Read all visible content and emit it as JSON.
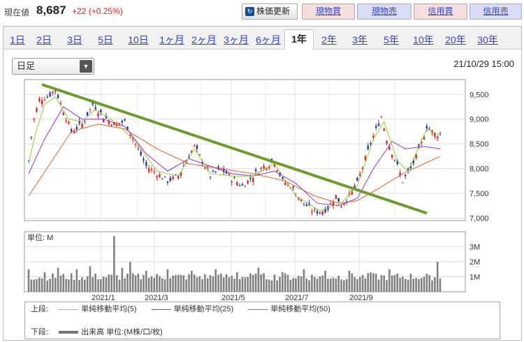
{
  "quote": {
    "label": "現在値",
    "price": "8,687",
    "change": "+22 (+0.25%)"
  },
  "buttons": {
    "update": "株価更新",
    "cash_buy": "現物買",
    "cash_sell": "現物売",
    "margin_buy": "信用買",
    "margin_sell": "信用売"
  },
  "tabs": [
    "1日",
    "2日",
    "3日",
    "5日",
    "10日",
    "1ヶ月",
    "2ヶ月",
    "3ヶ月",
    "6ヶ月",
    "1年",
    "2年",
    "3年",
    "5年",
    "10年",
    "20年",
    "30年"
  ],
  "active_tab": "1年",
  "interval_select": {
    "value": "日足"
  },
  "timestamp": "21/10/29 15:00",
  "volume_unit_label": "単位: M",
  "legend": {
    "upper_label": "上段:",
    "lower_label": "下段:",
    "ma5": "単純移動平均(5)",
    "ma25": "単純移動平均(25)",
    "ma50": "単純移動平均(50)",
    "volume": "出来高 単位:(M株/口/枚)"
  },
  "colors": {
    "up": "#e02020",
    "down": "#1f3aa8",
    "ma5": "#9acd32",
    "ma25": "#9932cc",
    "ma50": "#e0632a",
    "trendline": "#6f9a2c",
    "volume": "#808080"
  },
  "chart_data": {
    "type": "candlestick",
    "x_ticks": [
      "2021/1",
      "2021/3",
      "2021/5",
      "2021/7",
      "2021/9"
    ],
    "y_ticks": [
      7000,
      7500,
      8000,
      8500,
      9000,
      9500
    ],
    "y_tick_labels": [
      "7,000",
      "7,500",
      "8,000",
      "8,500",
      "9,000",
      "9,500"
    ],
    "ylim": [
      6950,
      9800
    ],
    "volume_ticks": [
      "1M",
      "2M",
      "3M"
    ],
    "volume_ylim": [
      0,
      4
    ],
    "close_path": [
      [
        0,
        8150
      ],
      [
        3,
        8900
      ],
      [
        8,
        9400
      ],
      [
        14,
        9450
      ],
      [
        20,
        9600
      ],
      [
        27,
        9100
      ],
      [
        32,
        8750
      ],
      [
        40,
        8900
      ],
      [
        48,
        9300
      ],
      [
        56,
        9050
      ],
      [
        64,
        8900
      ],
      [
        72,
        8950
      ],
      [
        80,
        8500
      ],
      [
        88,
        8050
      ],
      [
        96,
        7900
      ],
      [
        104,
        7750
      ],
      [
        112,
        7850
      ],
      [
        120,
        8250
      ],
      [
        124,
        8450
      ],
      [
        130,
        8150
      ],
      [
        136,
        7850
      ],
      [
        144,
        8000
      ],
      [
        152,
        7800
      ],
      [
        160,
        7650
      ],
      [
        168,
        7850
      ],
      [
        176,
        8050
      ],
      [
        184,
        8150
      ],
      [
        190,
        7750
      ],
      [
        196,
        7650
      ],
      [
        204,
        7350
      ],
      [
        212,
        7150
      ],
      [
        218,
        7120
      ],
      [
        224,
        7200
      ],
      [
        230,
        7450
      ],
      [
        234,
        7250
      ],
      [
        240,
        7450
      ],
      [
        246,
        7700
      ],
      [
        252,
        8200
      ],
      [
        258,
        8650
      ],
      [
        264,
        9050
      ],
      [
        268,
        8600
      ],
      [
        274,
        8200
      ],
      [
        280,
        7750
      ],
      [
        286,
        8000
      ],
      [
        292,
        8350
      ],
      [
        298,
        8850
      ],
      [
        304,
        8700
      ],
      [
        308,
        8687
      ]
    ],
    "ma5": [
      [
        0,
        8100
      ],
      [
        5,
        8700
      ],
      [
        12,
        9300
      ],
      [
        20,
        9450
      ],
      [
        30,
        9000
      ],
      [
        40,
        8950
      ],
      [
        50,
        9200
      ],
      [
        64,
        8950
      ],
      [
        80,
        8550
      ],
      [
        96,
        7950
      ],
      [
        112,
        7850
      ],
      [
        124,
        8400
      ],
      [
        136,
        7900
      ],
      [
        152,
        7850
      ],
      [
        168,
        7850
      ],
      [
        184,
        8100
      ],
      [
        200,
        7450
      ],
      [
        218,
        7150
      ],
      [
        234,
        7300
      ],
      [
        246,
        7650
      ],
      [
        258,
        8600
      ],
      [
        266,
        8950
      ],
      [
        276,
        8150
      ],
      [
        284,
        7950
      ],
      [
        298,
        8800
      ],
      [
        308,
        8680
      ]
    ],
    "ma25": [
      [
        0,
        7900
      ],
      [
        12,
        8600
      ],
      [
        26,
        9250
      ],
      [
        40,
        9000
      ],
      [
        56,
        9000
      ],
      [
        72,
        8850
      ],
      [
        88,
        8300
      ],
      [
        104,
        7950
      ],
      [
        120,
        8200
      ],
      [
        136,
        8050
      ],
      [
        152,
        7900
      ],
      [
        168,
        7850
      ],
      [
        184,
        7950
      ],
      [
        200,
        7700
      ],
      [
        216,
        7300
      ],
      [
        232,
        7250
      ],
      [
        246,
        7400
      ],
      [
        258,
        8000
      ],
      [
        272,
        8550
      ],
      [
        282,
        8400
      ],
      [
        296,
        8450
      ],
      [
        308,
        8400
      ]
    ],
    "ma50": [
      [
        0,
        7450
      ],
      [
        16,
        8100
      ],
      [
        32,
        8750
      ],
      [
        52,
        8900
      ],
      [
        72,
        8800
      ],
      [
        96,
        8400
      ],
      [
        120,
        8100
      ],
      [
        144,
        8000
      ],
      [
        168,
        7900
      ],
      [
        192,
        7750
      ],
      [
        214,
        7450
      ],
      [
        232,
        7300
      ],
      [
        246,
        7350
      ],
      [
        262,
        7600
      ],
      [
        280,
        7900
      ],
      [
        296,
        8100
      ],
      [
        308,
        8250
      ]
    ],
    "trendline": [
      [
        10,
        9700
      ],
      [
        298,
        7100
      ]
    ],
    "volume_base": 0.9,
    "volume_spikes": [
      [
        0,
        1.5
      ],
      [
        12,
        1.3
      ],
      [
        22,
        1.6
      ],
      [
        36,
        1.5
      ],
      [
        46,
        1.7
      ],
      [
        64,
        3.7
      ],
      [
        70,
        1.6
      ],
      [
        76,
        2.0
      ],
      [
        88,
        1.4
      ],
      [
        104,
        1.5
      ],
      [
        122,
        1.4
      ],
      [
        140,
        1.5
      ],
      [
        156,
        1.3
      ],
      [
        172,
        1.6
      ],
      [
        190,
        1.3
      ],
      [
        206,
        1.5
      ],
      [
        222,
        1.4
      ],
      [
        240,
        1.4
      ],
      [
        256,
        1.3
      ],
      [
        270,
        1.5
      ],
      [
        286,
        1.2
      ],
      [
        300,
        1.1
      ],
      [
        306,
        2.0
      ]
    ]
  }
}
